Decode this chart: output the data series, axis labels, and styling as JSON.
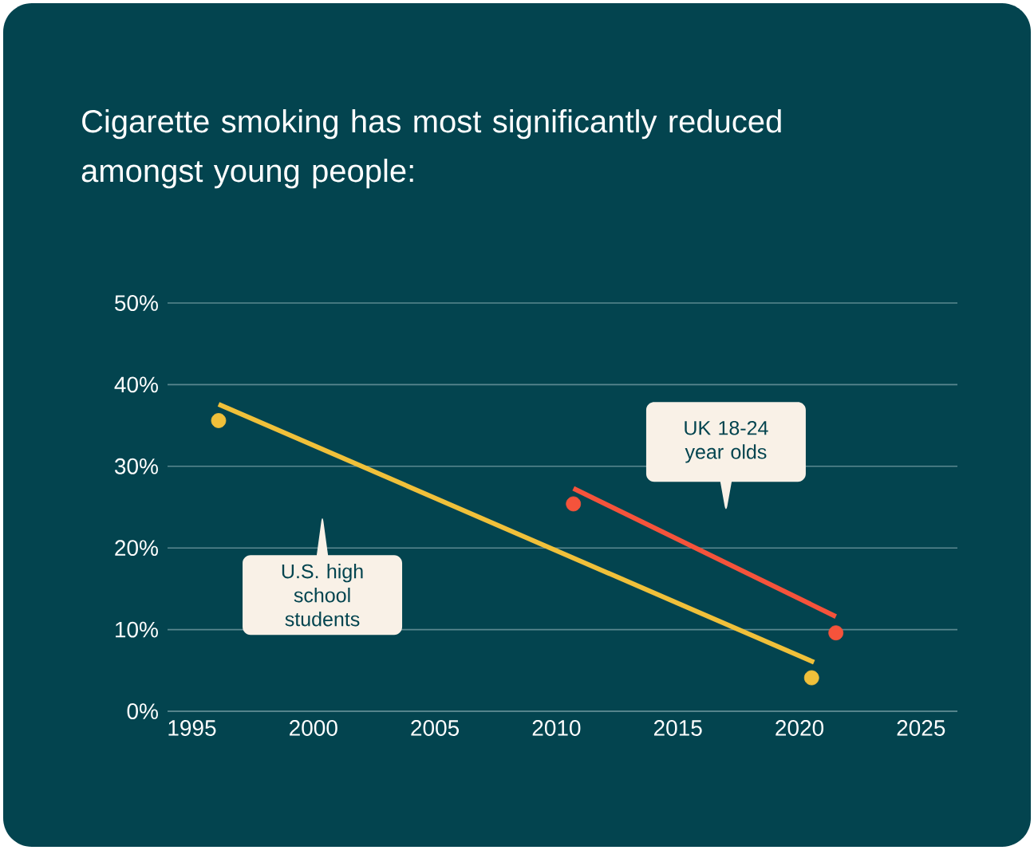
{
  "chart_data": {
    "type": "line",
    "title": "Cigarette smoking has most significantly reduced amongst young people:",
    "xlim": [
      1994,
      2026.5
    ],
    "xticks": [
      1995,
      2000,
      2005,
      2010,
      2015,
      2020,
      2025
    ],
    "ylim": [
      0,
      50
    ],
    "yticks": [
      {
        "value": 0,
        "label": "0%"
      },
      {
        "value": 10,
        "label": "10%"
      },
      {
        "value": 20,
        "label": "20%"
      },
      {
        "value": 30,
        "label": "30%"
      },
      {
        "value": 40,
        "label": "40%"
      },
      {
        "value": 50,
        "label": "50%"
      }
    ],
    "grid": "y",
    "line_style": "solid",
    "annotations": [
      "U.S. high school students",
      "UK  18-24 year olds"
    ],
    "series": [
      {
        "type": "scatter",
        "marker": "circle",
        "color": "#f0c03a",
        "x": [
          1996.1,
          2020.5
        ],
        "values": [
          35.6,
          4.1
        ]
      },
      {
        "marker": "none",
        "color": "#f0c03a",
        "x": [
          1996.1,
          2020.6
        ],
        "values": [
          37.6,
          6.0
        ]
      },
      {
        "type": "scatter",
        "marker": "circle",
        "color": "#f5533b",
        "x": [
          2010.7,
          2021.5
        ],
        "values": [
          25.4,
          9.6
        ]
      },
      {
        "marker": "none",
        "color": "#f5533b",
        "x": [
          2010.7,
          2021.5
        ],
        "values": [
          27.3,
          11.6
        ]
      }
    ]
  }
}
